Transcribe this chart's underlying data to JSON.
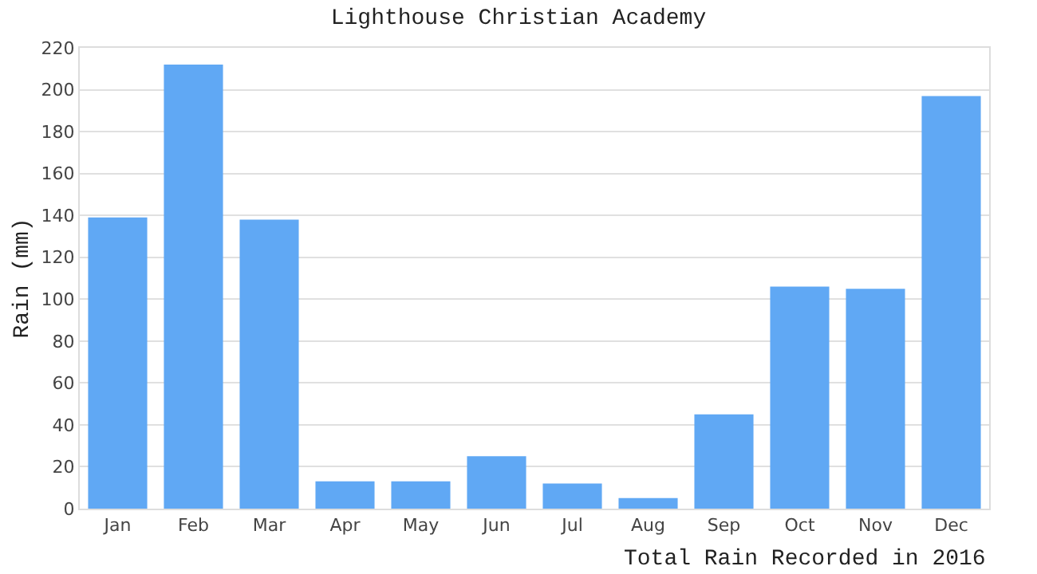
{
  "chart_data": {
    "type": "bar",
    "title": "Lighthouse Christian Academy",
    "xlabel": "Total Rain Recorded in 2016",
    "ylabel": "Rain (mm)",
    "categories": [
      "Jan",
      "Feb",
      "Mar",
      "Apr",
      "May",
      "Jun",
      "Jul",
      "Aug",
      "Sep",
      "Oct",
      "Nov",
      "Dec"
    ],
    "values": [
      139,
      212,
      138,
      13,
      13,
      25,
      12,
      5,
      45,
      106,
      105,
      197
    ],
    "color": "#60a8f4",
    "ylim": [
      0,
      220
    ],
    "yticks": [
      0,
      20,
      40,
      60,
      80,
      100,
      120,
      140,
      160,
      180,
      200,
      220
    ],
    "grid": "y"
  }
}
